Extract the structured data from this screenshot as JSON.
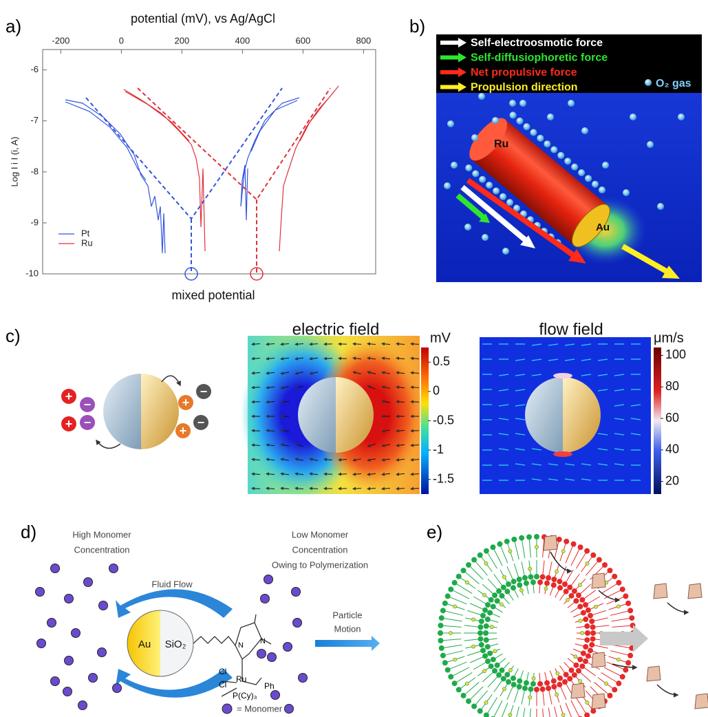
{
  "panel_a": {
    "label": "a)",
    "x_axis_label": "potential (mV), vs Ag/AgCl",
    "y_axis_label": "Log I i I  (i, A)",
    "xlim": [
      -260,
      840
    ],
    "xticks": [
      -200,
      0,
      200,
      400,
      600,
      800
    ],
    "ylim": [
      -10,
      -5.6
    ],
    "yticks": [
      -6,
      -7,
      -8,
      -9,
      -10
    ],
    "legend": [
      {
        "name": "Pt",
        "color": "#3355dd"
      },
      {
        "name": "Ru",
        "color": "#e0303a"
      }
    ],
    "annotation": "mixed potential"
  },
  "panel_b": {
    "label": "b)",
    "legend": [
      {
        "name": "Self-electroosmotic force",
        "color": "#ffffff"
      },
      {
        "name": "Self-diffusiophoretic force",
        "color": "#2ee62e"
      },
      {
        "name": "Net propulsive force",
        "color": "#ff2a1a"
      },
      {
        "name": "Propulsion direction",
        "color": "#ffee22"
      }
    ],
    "gas_label": "O₂ gas",
    "segment_top": "Ru",
    "segment_end": "Au"
  },
  "panel_c": {
    "label": "c)",
    "plus": "+",
    "minus": "−",
    "electric": {
      "title": "electric field",
      "unit": "mV",
      "lim": [
        -1.75,
        0.75
      ],
      "ticks": [
        0.5,
        0,
        -0.5,
        -1,
        -1.5
      ]
    },
    "flow": {
      "title": "flow field",
      "unit": "μm/s",
      "lim": [
        12,
        105
      ],
      "ticks": [
        100,
        80,
        60,
        40,
        20
      ]
    }
  },
  "panel_d": {
    "label": "d)",
    "high_monomer": [
      "High Monomer",
      "Concentration"
    ],
    "fluid_flow": "Fluid Flow",
    "low_monomer": [
      "Low Monomer",
      "Concentration",
      "Owing to Polymerization"
    ],
    "particle_motion": [
      "Particle",
      "Motion"
    ],
    "gold": "Au",
    "silica": "SiO₂",
    "legend": "= Monomer",
    "chem": {
      "n": "N",
      "cl": "Cl",
      "ru": "Ru",
      "ph": "Ph",
      "phosphine": "P(Cy)₃"
    }
  },
  "panel_e": {
    "label": "e)"
  }
}
